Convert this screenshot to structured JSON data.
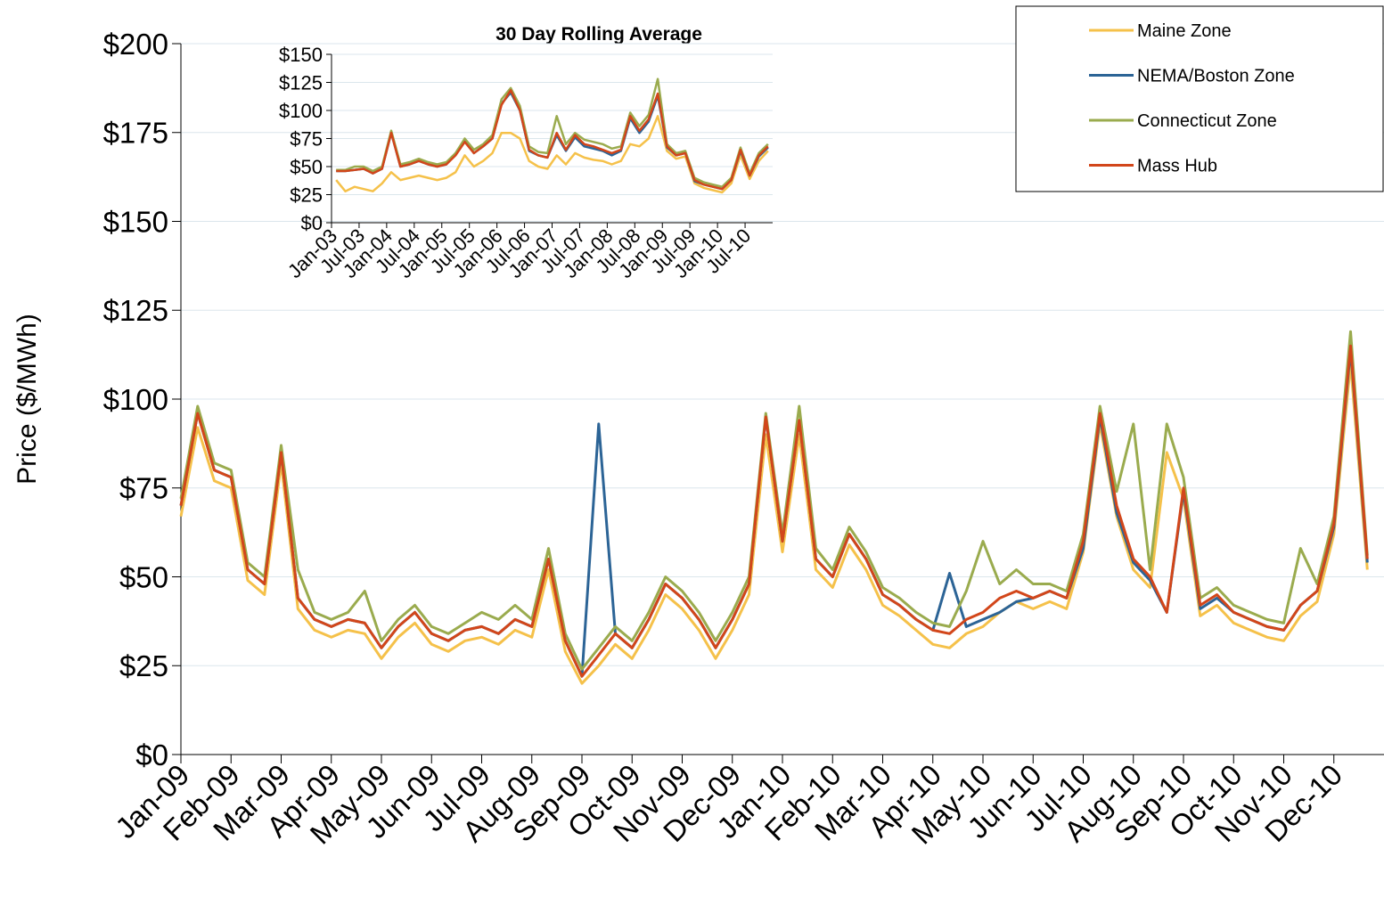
{
  "chart_data": [
    {
      "type": "line",
      "y_label": "Price ($/MWh)",
      "legend": "upper right",
      "grid": true,
      "categories": [
        "Jan-09",
        null,
        null,
        "Feb-09",
        null,
        null,
        "Mar-09",
        null,
        null,
        "Apr-09",
        null,
        null,
        "May-09",
        null,
        null,
        "Jun-09",
        null,
        null,
        "Jul-09",
        null,
        null,
        "Aug-09",
        null,
        null,
        "Sep-09",
        null,
        null,
        "Oct-09",
        null,
        null,
        "Nov-09",
        null,
        null,
        "Dec-09",
        null,
        null,
        "Jan-10",
        null,
        null,
        "Feb-10",
        null,
        null,
        "Mar-10",
        null,
        null,
        "Apr-10",
        null,
        null,
        "May-10",
        null,
        null,
        "Jun-10",
        null,
        null,
        "Jul-10",
        null,
        null,
        "Aug-10",
        null,
        null,
        "Sep-10",
        null,
        null,
        "Oct-10",
        null,
        null,
        "Nov-10",
        null,
        null,
        "Dec-10",
        null,
        null
      ],
      "ylim": [
        0,
        200
      ],
      "yticks": [
        {
          "value": 0,
          "label": "$0"
        },
        {
          "value": 25,
          "label": "$25"
        },
        {
          "value": 50,
          "label": "$50"
        },
        {
          "value": 75,
          "label": "$75"
        },
        {
          "value": 100,
          "label": "$100"
        },
        {
          "value": 125,
          "label": "$125"
        },
        {
          "value": 150,
          "label": "$150"
        },
        {
          "value": 175,
          "label": "$175"
        },
        {
          "value": 200,
          "label": "$200"
        }
      ],
      "series": [
        {
          "name": "Maine Zone",
          "color": "#f5c14a",
          "values": [
            67,
            92,
            77,
            75,
            49,
            45,
            82,
            41,
            35,
            33,
            35,
            34,
            27,
            33,
            37,
            31,
            29,
            32,
            33,
            31,
            35,
            33,
            52,
            29,
            20,
            25,
            31,
            27,
            35,
            45,
            41,
            35,
            27,
            35,
            45,
            90,
            57,
            90,
            52,
            47,
            59,
            52,
            42,
            39,
            35,
            31,
            30,
            34,
            36,
            40,
            43,
            41,
            43,
            41,
            57,
            93,
            67,
            52,
            47,
            85,
            72,
            39,
            42,
            37,
            35,
            33,
            32,
            39,
            43,
            62,
            110,
            52
          ]
        },
        {
          "name": "NEMA/Boston Zone",
          "color": "#2c6496",
          "values": [
            70,
            96,
            80,
            78,
            52,
            48,
            85,
            44,
            38,
            36,
            38,
            37,
            30,
            36,
            40,
            34,
            32,
            35,
            36,
            34,
            38,
            36,
            55,
            32,
            22,
            93,
            34,
            30,
            38,
            48,
            44,
            38,
            30,
            38,
            48,
            95,
            60,
            94,
            55,
            50,
            62,
            55,
            45,
            42,
            38,
            35,
            51,
            36,
            38,
            40,
            43,
            44,
            46,
            44,
            58,
            95,
            68,
            54,
            49,
            40,
            74,
            41,
            44,
            40,
            38,
            36,
            35,
            42,
            46,
            64,
            114,
            54
          ]
        },
        {
          "name": "Connecticut Zone",
          "color": "#9aab4e",
          "values": [
            72,
            98,
            82,
            80,
            54,
            50,
            87,
            52,
            40,
            38,
            40,
            46,
            32,
            38,
            42,
            36,
            34,
            37,
            40,
            38,
            42,
            38,
            58,
            34,
            24,
            30,
            36,
            32,
            40,
            50,
            46,
            40,
            32,
            40,
            50,
            96,
            62,
            98,
            58,
            52,
            64,
            57,
            47,
            44,
            40,
            37,
            36,
            46,
            60,
            48,
            52,
            48,
            48,
            46,
            62,
            98,
            74,
            93,
            52,
            93,
            78,
            44,
            47,
            42,
            40,
            38,
            37,
            58,
            48,
            67,
            119,
            56
          ]
        },
        {
          "name": "Mass Hub",
          "color": "#d2461a",
          "values": [
            70,
            96,
            80,
            78,
            52,
            48,
            85,
            44,
            38,
            36,
            38,
            37,
            30,
            36,
            40,
            34,
            32,
            35,
            36,
            34,
            38,
            36,
            55,
            32,
            22,
            28,
            34,
            30,
            38,
            48,
            44,
            38,
            30,
            38,
            48,
            95,
            60,
            94,
            55,
            50,
            62,
            55,
            45,
            42,
            38,
            35,
            34,
            38,
            40,
            44,
            46,
            44,
            46,
            44,
            60,
            96,
            70,
            55,
            50,
            40,
            75,
            42,
            45,
            40,
            38,
            36,
            35,
            42,
            46,
            65,
            115,
            55
          ]
        }
      ]
    },
    {
      "type": "line",
      "title": "30 Day Rolling Average",
      "grid": true,
      "categories": [
        "Jan-03",
        null,
        null,
        "Jul-03",
        null,
        null,
        "Jan-04",
        null,
        null,
        "Jul-04",
        null,
        null,
        "Jan-05",
        null,
        null,
        "Jul-05",
        null,
        null,
        "Jan-06",
        null,
        null,
        "Jul-06",
        null,
        null,
        "Jan-07",
        null,
        null,
        "Jul-07",
        null,
        null,
        "Jan-08",
        null,
        null,
        "Jul-08",
        null,
        null,
        "Jan-09",
        null,
        null,
        "Jul-09",
        null,
        null,
        "Jan-10",
        null,
        null,
        "Jul-10",
        null,
        null
      ],
      "ylim": [
        0,
        150
      ],
      "yticks": [
        {
          "value": 0,
          "label": "$0"
        },
        {
          "value": 25,
          "label": "$25"
        },
        {
          "value": 50,
          "label": "$50"
        },
        {
          "value": 75,
          "label": "$75"
        },
        {
          "value": 100,
          "label": "$100"
        },
        {
          "value": 125,
          "label": "$125"
        },
        {
          "value": 150,
          "label": "$150"
        }
      ],
      "series": [
        {
          "name": "Maine Zone",
          "color": "#f5c14a",
          "values": [
            38,
            28,
            32,
            30,
            28,
            35,
            45,
            38,
            40,
            42,
            40,
            38,
            40,
            45,
            60,
            50,
            55,
            62,
            80,
            80,
            75,
            55,
            50,
            48,
            60,
            52,
            62,
            58,
            56,
            55,
            52,
            55,
            70,
            68,
            75,
            95,
            64,
            57,
            59,
            35,
            31,
            29,
            27,
            35,
            60,
            39,
            55,
            64
          ]
        },
        {
          "name": "NEMA/Boston Zone",
          "color": "#2c6496",
          "values": [
            46,
            46,
            47,
            48,
            44,
            48,
            80,
            50,
            52,
            55,
            52,
            50,
            52,
            62,
            74,
            62,
            68,
            75,
            106,
            116,
            100,
            64,
            60,
            58,
            78,
            64,
            76,
            68,
            66,
            64,
            60,
            64,
            93,
            80,
            90,
            113,
            67,
            60,
            62,
            37,
            34,
            32,
            30,
            38,
            64,
            42,
            59,
            67
          ]
        },
        {
          "name": "Connecticut Zone",
          "color": "#9aab4e",
          "values": [
            47,
            47,
            50,
            50,
            46,
            50,
            82,
            52,
            54,
            57,
            54,
            52,
            54,
            62,
            75,
            65,
            70,
            78,
            110,
            120,
            104,
            68,
            63,
            62,
            95,
            70,
            80,
            74,
            72,
            70,
            66,
            68,
            98,
            86,
            96,
            128,
            70,
            62,
            64,
            40,
            36,
            34,
            32,
            40,
            67,
            44,
            62,
            70
          ]
        },
        {
          "name": "Mass Hub",
          "color": "#d2461a",
          "values": [
            46,
            46,
            47,
            48,
            44,
            48,
            80,
            50,
            52,
            55,
            52,
            50,
            52,
            60,
            72,
            62,
            68,
            75,
            105,
            118,
            100,
            65,
            60,
            58,
            80,
            65,
            78,
            70,
            68,
            65,
            62,
            65,
            95,
            82,
            92,
            115,
            68,
            60,
            62,
            38,
            34,
            32,
            30,
            38,
            65,
            42,
            60,
            68
          ]
        }
      ]
    }
  ]
}
